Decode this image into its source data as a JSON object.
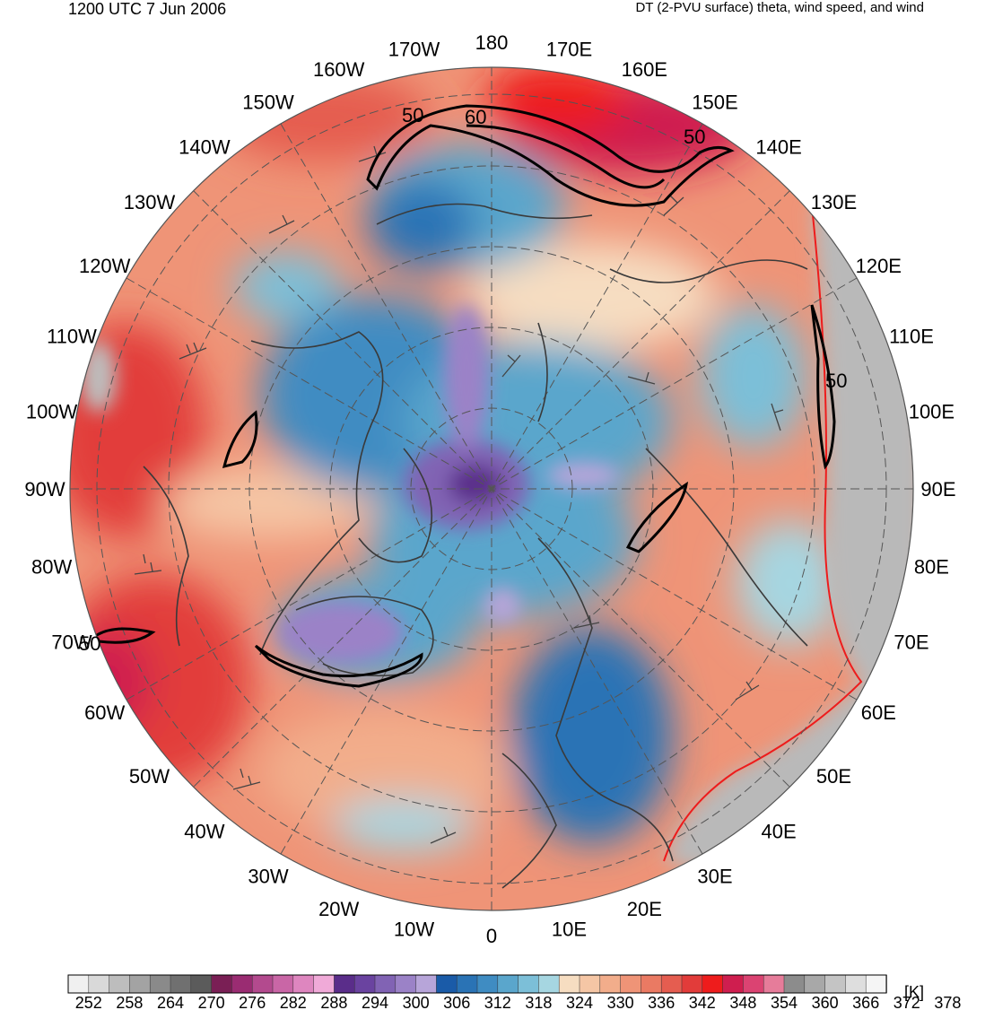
{
  "header": {
    "datetime": "1200 UTC 7 Jun 2006",
    "product": "DT (2-PVU surface) theta, wind speed, and wind"
  },
  "map": {
    "projection": "north polar stereographic",
    "longitude_labels": [
      "180",
      "170E",
      "160E",
      "150E",
      "140E",
      "130E",
      "120E",
      "110E",
      "100E",
      "90E",
      "80E",
      "70E",
      "60E",
      "50E",
      "40E",
      "30E",
      "20E",
      "10E",
      "0",
      "10W",
      "20W",
      "30W",
      "40W",
      "50W",
      "60W",
      "70W",
      "80W",
      "90W",
      "100W",
      "110W",
      "120W",
      "130W",
      "140W",
      "150W",
      "160W",
      "170W"
    ],
    "wind_speed_contours": [
      "50",
      "60",
      "50",
      "50",
      "50"
    ],
    "colors": {
      "warm_region": "#ef8a66",
      "hot_region": "#ee2b24",
      "cold_region": "#5aa8c8",
      "very_cold_region": "#9b7fc8",
      "coast_lines": "#3a3a3a"
    }
  },
  "colorbar": {
    "unit": "[K]",
    "tick_labels": [
      "252",
      "258",
      "264",
      "270",
      "276",
      "282",
      "288",
      "294",
      "300",
      "306",
      "312",
      "318",
      "324",
      "330",
      "336",
      "342",
      "348",
      "354",
      "360",
      "366",
      "372",
      "378"
    ],
    "colors": [
      "#f0f0f0",
      "#d9d9d9",
      "#bdbdbd",
      "#a3a3a3",
      "#8a8a8a",
      "#707070",
      "#5b5b5b",
      "#7a1f55",
      "#9a2c72",
      "#b34a8e",
      "#c966a6",
      "#de86bf",
      "#f0aad8",
      "#5a2d8a",
      "#6a43a0",
      "#8163b4",
      "#9b82c7",
      "#b7a5d9",
      "#1a5ba8",
      "#2a73b5",
      "#3f8cc2",
      "#5aa6cc",
      "#7cbfd8",
      "#a6d6e1",
      "#f6ddc1",
      "#f5c6a5",
      "#f2ad8b",
      "#ef9477",
      "#ea7a63",
      "#e55d50",
      "#e23c3a",
      "#ee1c1c",
      "#cf1e4f",
      "#db4372",
      "#e67c9a",
      "#8c8c8c",
      "#a8a8a8",
      "#c4c4c4",
      "#dedede",
      "#f5f5f5"
    ]
  }
}
